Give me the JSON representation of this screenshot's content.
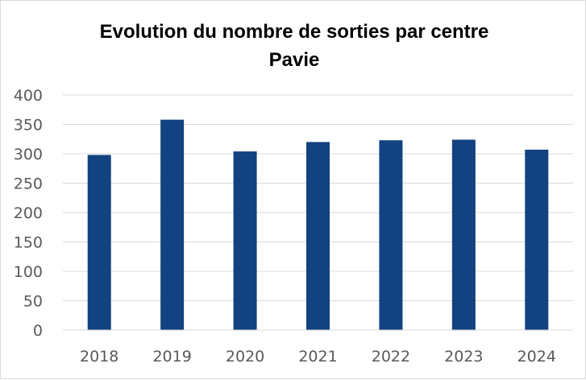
{
  "chart_data": {
    "type": "bar",
    "title": "Evolution du nombre de sorties par centre",
    "subtitle": "Pavie",
    "categories": [
      "2018",
      "2019",
      "2020",
      "2021",
      "2022",
      "2023",
      "2024"
    ],
    "series": [
      {
        "values": [
          298,
          358,
          304,
          320,
          323,
          324,
          307
        ]
      }
    ],
    "ylim": [
      0,
      400
    ],
    "yticks": [
      0,
      50,
      100,
      150,
      200,
      250,
      300,
      350,
      400
    ],
    "grid": true,
    "legend": "none",
    "xlabel": "",
    "ylabel": "",
    "colors": {
      "bar": "#12427f",
      "grid": "#d9d9d9",
      "axis": "#d9d9d9",
      "tick_text": "#595959"
    }
  }
}
